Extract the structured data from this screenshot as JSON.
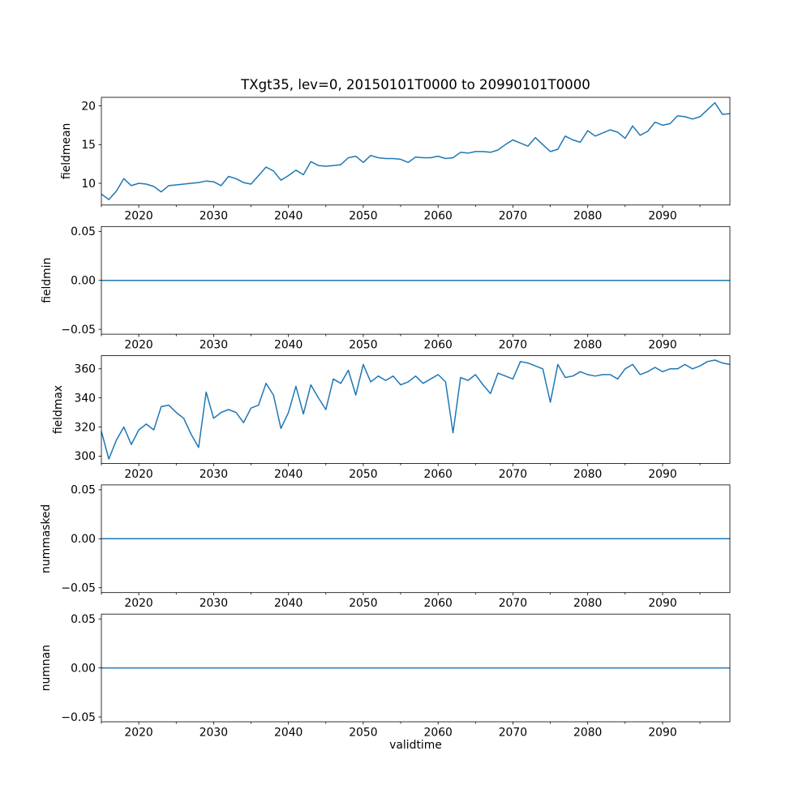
{
  "title": "TXgt35, lev=0, 20150101T0000 to 20990101T0000",
  "xlabel": "validtime",
  "line_color": "#1f77b4",
  "axis_color": "#000000",
  "x_axis": {
    "xlim": [
      2015,
      2099
    ],
    "major_ticks": [
      2020,
      2030,
      2040,
      2050,
      2060,
      2070,
      2080,
      2090
    ],
    "major_tick_labels": [
      "2020",
      "2030",
      "2040",
      "2050",
      "2060",
      "2070",
      "2080",
      "2090"
    ],
    "minor_ticks": [
      2015,
      2025,
      2035,
      2045,
      2055,
      2065,
      2075,
      2085,
      2095
    ]
  },
  "chart_data": [
    {
      "type": "line",
      "ylabel": "fieldmean",
      "ylim": [
        7.2,
        21.1
      ],
      "yticks": [
        10,
        15,
        20
      ],
      "ytick_labels": [
        "10",
        "15",
        "20"
      ],
      "x_start": 2015,
      "x_step_years": 1,
      "values": [
        8.6,
        7.9,
        9.0,
        10.6,
        9.7,
        10.0,
        9.9,
        9.6,
        8.9,
        9.7,
        9.8,
        9.9,
        10.0,
        10.1,
        10.3,
        10.2,
        9.7,
        10.9,
        10.6,
        10.1,
        9.9,
        11.0,
        12.1,
        11.6,
        10.4,
        11.0,
        11.7,
        11.1,
        12.8,
        12.3,
        12.2,
        12.3,
        12.4,
        13.3,
        13.5,
        12.7,
        13.6,
        13.3,
        13.2,
        13.2,
        13.1,
        12.7,
        13.4,
        13.3,
        13.3,
        13.5,
        13.2,
        13.3,
        14.0,
        13.9,
        14.1,
        14.1,
        14.0,
        14.3,
        15.0,
        15.6,
        15.2,
        14.8,
        15.9,
        15.0,
        14.1,
        14.4,
        16.1,
        15.6,
        15.3,
        16.8,
        16.1,
        16.5,
        16.9,
        16.6,
        15.8,
        17.4,
        16.2,
        16.7,
        17.9,
        17.5,
        17.7,
        18.7,
        18.6,
        18.3,
        18.6,
        19.5,
        20.4,
        18.9,
        19.0
      ]
    },
    {
      "type": "line",
      "ylabel": "fieldmin",
      "ylim": [
        -0.055,
        0.055
      ],
      "yticks": [
        -0.05,
        0.0,
        0.05
      ],
      "ytick_labels": [
        "−0.05",
        "0.00",
        "0.05"
      ],
      "x_start": 2015,
      "x_step_years": 1,
      "constant_value": 0
    },
    {
      "type": "line",
      "ylabel": "fieldmax",
      "ylim": [
        295,
        369
      ],
      "yticks": [
        300,
        320,
        340,
        360
      ],
      "ytick_labels": [
        "300",
        "320",
        "340",
        "360"
      ],
      "x_start": 2015,
      "x_step_years": 1,
      "values": [
        317,
        298,
        311,
        320,
        308,
        318,
        322,
        318,
        334,
        335,
        330,
        326,
        315,
        306,
        344,
        326,
        330,
        332,
        330,
        323,
        333,
        335,
        350,
        342,
        319,
        330,
        348,
        329,
        349,
        340,
        332,
        353,
        350,
        359,
        342,
        363,
        351,
        355,
        352,
        355,
        349,
        351,
        355,
        350,
        353,
        356,
        351,
        316,
        354,
        352,
        356,
        349,
        343,
        357,
        355,
        353,
        365,
        364,
        362,
        360,
        337,
        363,
        354,
        355,
        358,
        356,
        355,
        356,
        356,
        353,
        360,
        363,
        356,
        358,
        361,
        358,
        360,
        360,
        363,
        360,
        362,
        365,
        366,
        364,
        363
      ]
    },
    {
      "type": "line",
      "ylabel": "nummasked",
      "ylim": [
        -0.055,
        0.055
      ],
      "yticks": [
        -0.05,
        0.0,
        0.05
      ],
      "ytick_labels": [
        "−0.05",
        "0.00",
        "0.05"
      ],
      "x_start": 2015,
      "x_step_years": 1,
      "constant_value": 0
    },
    {
      "type": "line",
      "ylabel": "numnan",
      "ylim": [
        -0.055,
        0.055
      ],
      "yticks": [
        -0.05,
        0.0,
        0.05
      ],
      "ytick_labels": [
        "−0.05",
        "0.00",
        "0.05"
      ],
      "x_start": 2015,
      "x_step_years": 1,
      "constant_value": 0
    }
  ]
}
